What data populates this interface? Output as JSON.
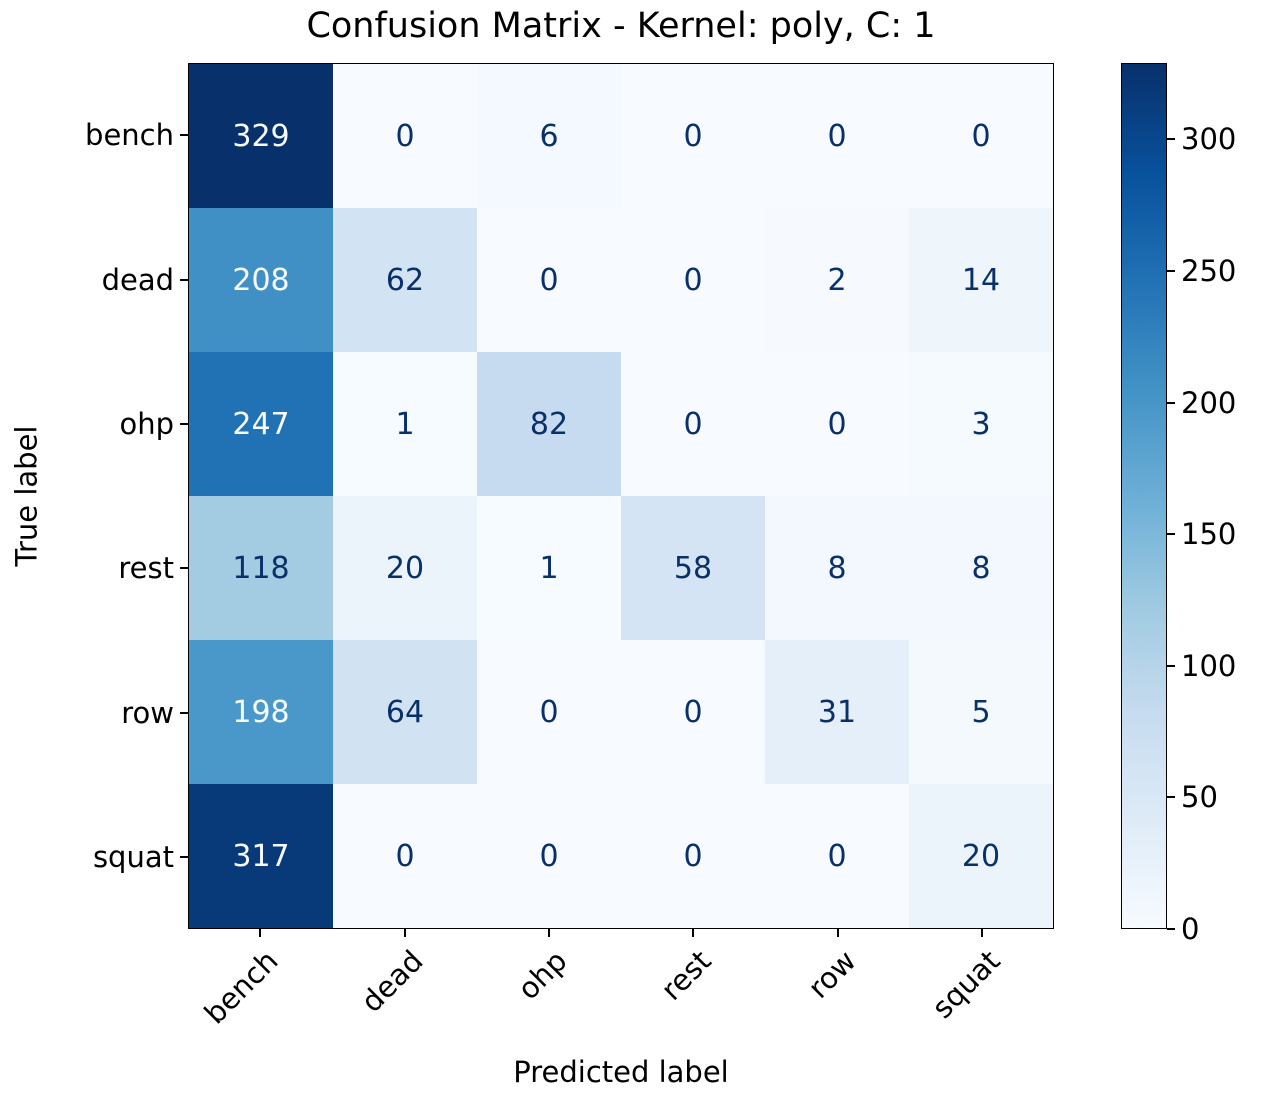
{
  "chart_data": {
    "type": "heatmap",
    "title": "Confusion Matrix - Kernel: poly, C: 1",
    "xlabel": "Predicted label",
    "ylabel": "True label",
    "categories": [
      "bench",
      "dead",
      "ohp",
      "rest",
      "row",
      "squat"
    ],
    "matrix": [
      [
        329,
        0,
        6,
        0,
        0,
        0
      ],
      [
        208,
        62,
        0,
        0,
        2,
        14
      ],
      [
        247,
        1,
        82,
        0,
        0,
        3
      ],
      [
        118,
        20,
        1,
        58,
        8,
        8
      ],
      [
        198,
        64,
        0,
        0,
        31,
        5
      ],
      [
        317,
        0,
        0,
        0,
        0,
        20
      ]
    ],
    "vmin": 0,
    "vmax": 329,
    "colormap": {
      "name": "Blues",
      "anchors": [
        {
          "pos": 0.0,
          "color": "#f7fbff"
        },
        {
          "pos": 0.125,
          "color": "#deebf7"
        },
        {
          "pos": 0.25,
          "color": "#c6dbef"
        },
        {
          "pos": 0.375,
          "color": "#9ecae1"
        },
        {
          "pos": 0.5,
          "color": "#6baed6"
        },
        {
          "pos": 0.625,
          "color": "#4292c6"
        },
        {
          "pos": 0.75,
          "color": "#2171b5"
        },
        {
          "pos": 0.875,
          "color": "#08519c"
        },
        {
          "pos": 1.0,
          "color": "#08306b"
        }
      ]
    },
    "colorbar_ticks": [
      0,
      50,
      100,
      150,
      200,
      250,
      300
    ],
    "cell_text_color_on_dark": "#f7fbff",
    "cell_text_color_on_light": "#08306b",
    "legend_position": "colorbar-right",
    "grid": false
  }
}
